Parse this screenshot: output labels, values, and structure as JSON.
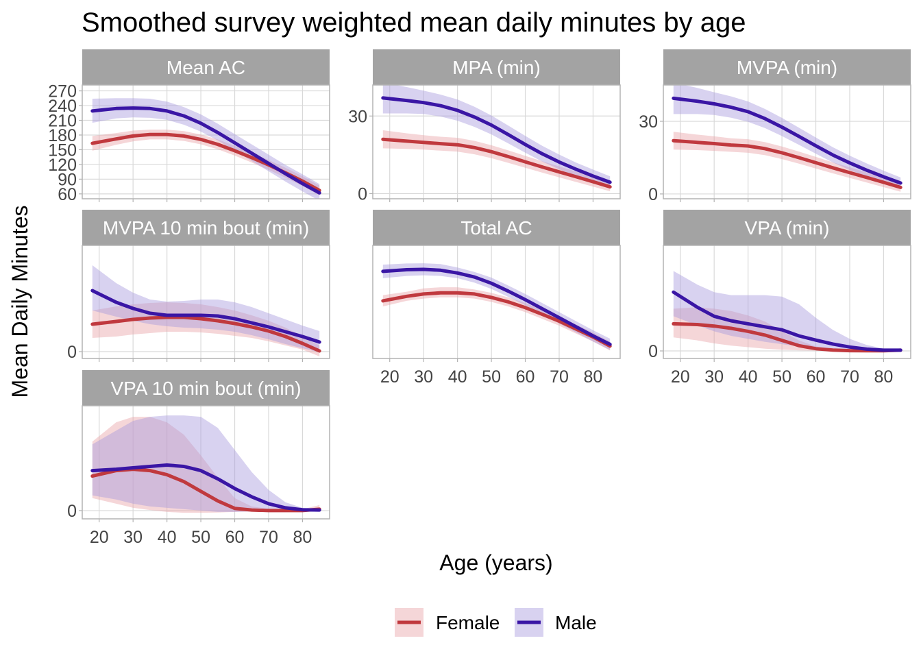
{
  "title": "Smoothed survey weighted mean daily minutes by age",
  "xlabel": "Age (years)",
  "ylabel": "Mean Daily Minutes",
  "colors": {
    "Female": "#C0393E",
    "Male": "#3A16A5",
    "Female_band": "#E8A3A8",
    "Male_band": "#A89BDD",
    "strip": "#A3A3A3",
    "grid": "#D9D9D9",
    "border": "#B3B3B3"
  },
  "legend": {
    "position": "bottom",
    "items": [
      {
        "label": "Female",
        "color": "#C0393E"
      },
      {
        "label": "Male",
        "color": "#3A16A5"
      }
    ]
  },
  "chart_data": [
    {
      "type": "line",
      "panel": "Mean AC",
      "xlim": [
        15,
        88
      ],
      "ylim": [
        50,
        282
      ],
      "x_ticks": [
        20,
        30,
        40,
        50,
        60,
        70,
        80
      ],
      "x_tick_labels_shown": false,
      "y_ticks": [
        60,
        90,
        120,
        150,
        180,
        210,
        240,
        270
      ],
      "y_tick_labels": [
        "60",
        "90",
        "120",
        "150",
        "180",
        "210",
        "240",
        "270"
      ],
      "series": [
        {
          "name": "Female",
          "x": [
            18,
            25,
            30,
            35,
            40,
            45,
            50,
            55,
            60,
            65,
            70,
            75,
            80,
            85
          ],
          "y": [
            163,
            172,
            178,
            181,
            181,
            178,
            171,
            161,
            148,
            134,
            119,
            103,
            86,
            67
          ],
          "lower": [
            148,
            160,
            167,
            171,
            171,
            168,
            161,
            151,
            138,
            124,
            109,
            93,
            76,
            57
          ],
          "upper": [
            178,
            184,
            189,
            191,
            191,
            188,
            181,
            171,
            158,
            144,
            129,
            113,
            96,
            77
          ]
        },
        {
          "name": "Male",
          "x": [
            18,
            25,
            30,
            35,
            40,
            45,
            50,
            55,
            60,
            65,
            70,
            75,
            80,
            85
          ],
          "y": [
            229,
            234,
            235,
            234,
            229,
            219,
            204,
            185,
            164,
            143,
            122,
            101,
            81,
            62
          ],
          "lower": [
            205,
            214,
            216,
            215,
            211,
            201,
            187,
            169,
            148,
            127,
            106,
            85,
            65,
            46
          ],
          "upper": [
            254,
            255,
            255,
            254,
            248,
            237,
            222,
            203,
            182,
            161,
            140,
            119,
            100,
            80
          ]
        }
      ]
    },
    {
      "type": "line",
      "panel": "MPA (min)",
      "xlim": [
        15,
        88
      ],
      "ylim": [
        -2,
        42
      ],
      "x_ticks": [
        20,
        30,
        40,
        50,
        60,
        70,
        80
      ],
      "x_tick_labels_shown": false,
      "y_ticks": [
        0,
        30
      ],
      "y_tick_labels": [
        "0",
        "30"
      ],
      "series": [
        {
          "name": "Female",
          "x": [
            18,
            25,
            30,
            35,
            40,
            45,
            50,
            55,
            60,
            65,
            70,
            75,
            80,
            85
          ],
          "y": [
            21,
            20.3,
            19.8,
            19.3,
            18.9,
            17.8,
            16.2,
            14.3,
            12.3,
            10.3,
            8.4,
            6.5,
            4.6,
            2.6
          ],
          "lower": [
            17.5,
            17.3,
            17.0,
            16.6,
            16.2,
            15.2,
            13.7,
            11.9,
            10.0,
            8.1,
            6.3,
            4.5,
            2.7,
            0.9
          ],
          "upper": [
            24.5,
            23.3,
            22.6,
            22.0,
            21.6,
            20.4,
            18.7,
            16.7,
            14.6,
            12.5,
            10.5,
            8.5,
            6.5,
            4.3
          ]
        },
        {
          "name": "Male",
          "x": [
            18,
            25,
            30,
            35,
            40,
            45,
            50,
            55,
            60,
            65,
            70,
            75,
            80,
            85
          ],
          "y": [
            37,
            36,
            35.2,
            34.0,
            32.2,
            29.6,
            26.5,
            22.8,
            19.0,
            15.4,
            12.2,
            9.4,
            6.8,
            4.4
          ],
          "lower": [
            31,
            31,
            30.8,
            29.8,
            28.2,
            25.8,
            22.9,
            19.4,
            15.8,
            12.4,
            9.4,
            6.8,
            4.4,
            2.2
          ],
          "upper": [
            43,
            41.2,
            39.8,
            38.3,
            36.4,
            33.6,
            30.2,
            26.3,
            22.3,
            18.5,
            15.1,
            12.0,
            9.3,
            6.7
          ]
        }
      ]
    },
    {
      "type": "line",
      "panel": "MVPA (min)",
      "xlim": [
        15,
        88
      ],
      "ylim": [
        -2,
        45
      ],
      "x_ticks": [
        20,
        30,
        40,
        50,
        60,
        70,
        80
      ],
      "x_tick_labels_shown": false,
      "y_ticks": [
        0,
        30
      ],
      "y_tick_labels": [
        "0",
        "30"
      ],
      "series": [
        {
          "name": "Female",
          "x": [
            18,
            25,
            30,
            35,
            40,
            45,
            50,
            55,
            60,
            65,
            70,
            75,
            80,
            85
          ],
          "y": [
            22,
            21.3,
            20.8,
            20.2,
            19.8,
            18.7,
            17.0,
            15.0,
            12.9,
            10.8,
            8.8,
            6.8,
            4.8,
            2.7
          ],
          "lower": [
            18.3,
            18.1,
            17.8,
            17.4,
            17.0,
            16.0,
            14.4,
            12.5,
            10.5,
            8.5,
            6.6,
            4.7,
            2.8,
            0.9
          ],
          "upper": [
            25.7,
            24.5,
            23.8,
            23.0,
            22.6,
            21.4,
            19.6,
            17.5,
            15.3,
            13.1,
            11.0,
            8.9,
            6.8,
            4.5
          ]
        },
        {
          "name": "Male",
          "x": [
            18,
            25,
            30,
            35,
            40,
            45,
            50,
            55,
            60,
            65,
            70,
            75,
            80,
            85
          ],
          "y": [
            39.5,
            38.3,
            37.2,
            35.8,
            34.0,
            31.1,
            27.6,
            23.8,
            19.9,
            16.1,
            12.8,
            9.8,
            7.1,
            4.5
          ],
          "lower": [
            33.0,
            33.0,
            32.6,
            31.5,
            29.8,
            27.2,
            23.9,
            20.3,
            16.6,
            13.0,
            9.9,
            7.1,
            4.6,
            2.2
          ],
          "upper": [
            46.0,
            43.8,
            42.0,
            40.3,
            38.2,
            35.1,
            31.4,
            27.4,
            23.3,
            19.3,
            15.8,
            12.6,
            9.6,
            6.8
          ]
        }
      ]
    },
    {
      "type": "line",
      "panel": "MVPA 10 min bout (min)",
      "xlim": [
        15,
        88
      ],
      "ylim": [
        -1,
        15.5
      ],
      "x_ticks": [
        20,
        30,
        40,
        50,
        60,
        70,
        80
      ],
      "x_tick_labels_shown": false,
      "y_ticks": [
        0
      ],
      "y_tick_labels": [
        "0"
      ],
      "series": [
        {
          "name": "Female",
          "x": [
            18,
            25,
            30,
            35,
            40,
            45,
            50,
            55,
            60,
            65,
            70,
            75,
            80,
            85
          ],
          "y": [
            4.0,
            4.4,
            4.7,
            4.9,
            5.0,
            5.0,
            4.8,
            4.5,
            4.1,
            3.6,
            3.0,
            2.2,
            1.2,
            0.1
          ],
          "lower": [
            2.0,
            2.2,
            2.5,
            2.7,
            2.9,
            2.9,
            2.8,
            2.6,
            2.3,
            2.0,
            1.5,
            0.9,
            0.3,
            -0.7
          ],
          "upper": [
            6.0,
            6.6,
            6.9,
            7.1,
            7.2,
            7.1,
            6.9,
            6.5,
            6.0,
            5.3,
            4.5,
            3.5,
            2.2,
            0.9
          ]
        },
        {
          "name": "Male",
          "x": [
            18,
            25,
            30,
            35,
            40,
            45,
            50,
            55,
            60,
            65,
            70,
            75,
            80,
            85
          ],
          "y": [
            8.9,
            7.2,
            6.3,
            5.6,
            5.3,
            5.3,
            5.3,
            5.2,
            4.8,
            4.2,
            3.6,
            2.9,
            2.2,
            1.4
          ],
          "lower": [
            6.0,
            5.1,
            4.5,
            4.0,
            3.7,
            3.5,
            3.4,
            3.2,
            2.9,
            2.4,
            1.8,
            1.1,
            0.5,
            -0.1
          ],
          "upper": [
            12.6,
            10.0,
            8.6,
            7.6,
            7.3,
            7.4,
            7.6,
            7.6,
            7.2,
            6.5,
            5.6,
            4.7,
            3.8,
            3.0
          ]
        }
      ]
    },
    {
      "type": "line",
      "panel": "Total AC",
      "xlim": [
        15,
        88
      ],
      "ylim": [
        0,
        100
      ],
      "x_ticks": [
        20,
        30,
        40,
        50,
        60,
        70,
        80
      ],
      "x_tick_labels_shown": true,
      "y_ticks": [],
      "y_tick_labels": [],
      "series": [
        {
          "name": "Female",
          "x": [
            18,
            25,
            30,
            35,
            40,
            45,
            50,
            55,
            60,
            65,
            70,
            75,
            80,
            85
          ],
          "y": [
            51,
            55,
            57,
            58,
            58,
            57,
            54,
            50,
            45,
            39,
            33,
            26,
            19,
            11
          ],
          "lower": [
            46,
            51,
            53,
            54,
            54,
            53,
            50,
            46,
            41,
            35,
            29,
            22,
            15,
            7
          ],
          "upper": [
            56,
            59,
            62,
            63,
            63,
            61,
            58,
            54,
            49,
            43,
            37,
            30,
            23,
            15
          ]
        },
        {
          "name": "Male",
          "x": [
            18,
            25,
            30,
            35,
            40,
            45,
            50,
            55,
            60,
            65,
            70,
            75,
            80,
            85
          ],
          "y": [
            77,
            78.5,
            78.8,
            78,
            75.6,
            72,
            66.5,
            59.5,
            52,
            44,
            36,
            28,
            20,
            12.5
          ],
          "lower": [
            71,
            73,
            73.6,
            73,
            71,
            67,
            61.5,
            54.5,
            47,
            39,
            31,
            23,
            15,
            7.5
          ],
          "upper": [
            83,
            84,
            84.2,
            83.5,
            80.5,
            76.5,
            71.5,
            64.5,
            57,
            49,
            41,
            33,
            25,
            17.5
          ]
        }
      ]
    },
    {
      "type": "line",
      "panel": "VPA (min)",
      "xlim": [
        15,
        88
      ],
      "ylim": [
        -0.5,
        7
      ],
      "x_ticks": [
        20,
        30,
        40,
        50,
        60,
        70,
        80
      ],
      "x_tick_labels_shown": true,
      "y_ticks": [
        0
      ],
      "y_tick_labels": [
        "0"
      ],
      "series": [
        {
          "name": "Female",
          "x": [
            18,
            25,
            30,
            35,
            40,
            45,
            50,
            55,
            60,
            65,
            70,
            75,
            80,
            85
          ],
          "y": [
            1.8,
            1.75,
            1.65,
            1.5,
            1.3,
            1.05,
            0.7,
            0.35,
            0.15,
            0.06,
            0.02,
            0.01,
            0.01,
            0.05
          ],
          "lower": [
            0.9,
            0.7,
            0.5,
            0.35,
            0.25,
            0.15,
            0.08,
            0.04,
            0.02,
            0.01,
            0.0,
            0.0,
            0.0,
            0.0
          ],
          "upper": [
            2.8,
            2.9,
            2.8,
            2.65,
            2.35,
            1.95,
            1.3,
            0.7,
            0.3,
            0.12,
            0.05,
            0.02,
            0.02,
            0.1
          ]
        },
        {
          "name": "Male",
          "x": [
            18,
            25,
            30,
            35,
            40,
            45,
            50,
            55,
            60,
            65,
            70,
            75,
            80,
            85
          ],
          "y": [
            3.9,
            2.9,
            2.3,
            2.0,
            1.8,
            1.6,
            1.4,
            1.0,
            0.72,
            0.46,
            0.26,
            0.12,
            0.05,
            0.05
          ],
          "lower": [
            2.3,
            1.7,
            1.3,
            1.0,
            0.8,
            0.6,
            0.45,
            0.3,
            0.18,
            0.1,
            0.05,
            0.02,
            0.01,
            0.01
          ],
          "upper": [
            5.3,
            4.4,
            3.9,
            3.7,
            3.7,
            3.7,
            3.6,
            3.1,
            2.2,
            1.4,
            0.8,
            0.4,
            0.15,
            0.1
          ]
        }
      ]
    },
    {
      "type": "line",
      "panel": "VPA 10 min bout (min)",
      "xlim": [
        15,
        88
      ],
      "ylim": [
        -0.3,
        3.8
      ],
      "x_ticks": [
        20,
        30,
        40,
        50,
        60,
        70,
        80
      ],
      "x_tick_labels_shown": true,
      "y_ticks": [
        0
      ],
      "y_tick_labels": [
        "0"
      ],
      "series": [
        {
          "name": "Female",
          "x": [
            18,
            25,
            30,
            35,
            40,
            45,
            50,
            55,
            60,
            65,
            70,
            75,
            80,
            85
          ],
          "y": [
            1.25,
            1.45,
            1.5,
            1.45,
            1.3,
            1.05,
            0.7,
            0.35,
            0.08,
            0.02,
            0.0,
            0.0,
            0.0,
            0.05
          ],
          "lower": [
            0.45,
            0.25,
            0.1,
            0.02,
            -0.05,
            -0.08,
            -0.08,
            -0.07,
            -0.05,
            -0.03,
            -0.01,
            0.0,
            0.0,
            0.0
          ],
          "upper": [
            2.5,
            3.2,
            3.4,
            3.4,
            3.2,
            2.75,
            2.0,
            1.2,
            0.45,
            0.15,
            0.06,
            0.04,
            0.05,
            0.2
          ]
        },
        {
          "name": "Male",
          "x": [
            18,
            25,
            30,
            35,
            40,
            45,
            50,
            55,
            60,
            65,
            70,
            75,
            80,
            85
          ],
          "y": [
            1.45,
            1.5,
            1.55,
            1.6,
            1.65,
            1.6,
            1.45,
            1.15,
            0.8,
            0.5,
            0.25,
            0.1,
            0.03,
            0.02
          ],
          "lower": [
            0.55,
            0.4,
            0.25,
            0.15,
            0.1,
            0.05,
            0.0,
            -0.05,
            -0.05,
            -0.03,
            -0.02,
            -0.01,
            0.0,
            0.0
          ],
          "upper": [
            2.4,
            2.9,
            3.25,
            3.4,
            3.45,
            3.45,
            3.4,
            3.0,
            2.2,
            1.4,
            0.75,
            0.3,
            0.1,
            0.05
          ]
        }
      ]
    }
  ]
}
